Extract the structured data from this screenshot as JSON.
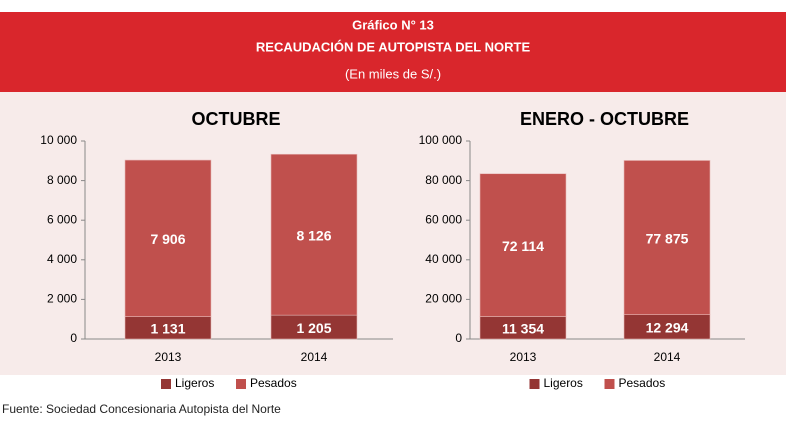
{
  "header": {
    "title": "Gráfico N° 13",
    "subtitle": "RECAUDACIÓN DE AUTOPISTA DEL NORTE",
    "note": "(En miles de S/.)"
  },
  "source": "Fuente: Sociedad Concesionaria Autopista del Norte",
  "chart_data": [
    {
      "type": "bar",
      "stacked": true,
      "title": "OCTUBRE",
      "categories": [
        "2013",
        "2014"
      ],
      "series": [
        {
          "name": "Ligeros",
          "color": "#943634",
          "values": [
            1131,
            1205
          ],
          "value_labels": [
            "1 131",
            "1 205"
          ]
        },
        {
          "name": "Pesados",
          "color": "#c0504d",
          "values": [
            7906,
            8126
          ],
          "value_labels": [
            "7 906",
            "8 126"
          ]
        }
      ],
      "ylim": [
        0,
        10000
      ],
      "yticks": [
        0,
        {
          "value": 2000,
          "label": "2 000"
        },
        {
          "value": 4000,
          "label": "4 000"
        },
        {
          "value": 6000,
          "label": "6 000"
        },
        {
          "value": 8000,
          "label": "8 000"
        },
        {
          "value": 10000,
          "label": "10 000"
        }
      ],
      "legend": "bottom"
    },
    {
      "type": "bar",
      "stacked": true,
      "title": "ENERO - OCTUBRE",
      "categories": [
        "2013",
        "2014"
      ],
      "series": [
        {
          "name": "Ligeros",
          "color": "#943634",
          "values": [
            11354,
            12294
          ],
          "value_labels": [
            "11 354",
            "12 294"
          ]
        },
        {
          "name": "Pesados",
          "color": "#c0504d",
          "values": [
            72114,
            77875
          ],
          "value_labels": [
            "72 114",
            "77 875"
          ]
        }
      ],
      "ylim": [
        0,
        100000
      ],
      "yticks": [
        0,
        {
          "value": 20000,
          "label": "20 000"
        },
        {
          "value": 40000,
          "label": "40 000"
        },
        {
          "value": 60000,
          "label": "60 000"
        },
        {
          "value": 80000,
          "label": "80 000"
        },
        {
          "value": 100000,
          "label": "100 000"
        }
      ],
      "legend": "bottom"
    }
  ]
}
